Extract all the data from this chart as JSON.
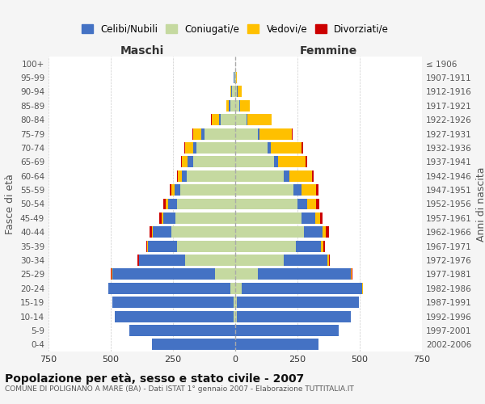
{
  "age_groups": [
    "0-4",
    "5-9",
    "10-14",
    "15-19",
    "20-24",
    "25-29",
    "30-34",
    "35-39",
    "40-44",
    "45-49",
    "50-54",
    "55-59",
    "60-64",
    "65-69",
    "70-74",
    "75-79",
    "80-84",
    "85-89",
    "90-94",
    "95-99",
    "100+"
  ],
  "birth_years": [
    "2002-2006",
    "1997-2001",
    "1992-1996",
    "1987-1991",
    "1982-1986",
    "1977-1981",
    "1972-1976",
    "1967-1971",
    "1962-1966",
    "1957-1961",
    "1952-1956",
    "1947-1951",
    "1942-1946",
    "1937-1941",
    "1932-1936",
    "1927-1931",
    "1922-1926",
    "1917-1921",
    "1912-1916",
    "1907-1911",
    "≤ 1906"
  ],
  "maschi": {
    "celibi": [
      335,
      425,
      480,
      490,
      490,
      415,
      185,
      115,
      75,
      50,
      35,
      25,
      20,
      20,
      15,
      10,
      5,
      5,
      4,
      2,
      0
    ],
    "coniugati": [
      0,
      0,
      5,
      5,
      20,
      80,
      200,
      235,
      255,
      240,
      235,
      220,
      195,
      170,
      155,
      125,
      60,
      20,
      12,
      3,
      0
    ],
    "vedovi": [
      0,
      0,
      0,
      0,
      0,
      2,
      2,
      3,
      4,
      5,
      8,
      10,
      15,
      25,
      30,
      35,
      30,
      10,
      5,
      2,
      0
    ],
    "divorziati": [
      0,
      0,
      0,
      0,
      0,
      3,
      5,
      5,
      10,
      10,
      10,
      8,
      5,
      3,
      3,
      3,
      2,
      0,
      0,
      0,
      0
    ]
  },
  "femmine": {
    "nubili": [
      335,
      415,
      460,
      490,
      485,
      375,
      175,
      100,
      75,
      55,
      40,
      30,
      22,
      18,
      12,
      8,
      5,
      5,
      3,
      1,
      0
    ],
    "coniugate": [
      0,
      0,
      5,
      8,
      25,
      90,
      195,
      245,
      275,
      265,
      250,
      235,
      195,
      155,
      130,
      90,
      45,
      15,
      8,
      2,
      0
    ],
    "vedove": [
      0,
      0,
      0,
      0,
      2,
      3,
      5,
      8,
      15,
      20,
      35,
      60,
      90,
      110,
      125,
      130,
      95,
      40,
      15,
      3,
      0
    ],
    "divorziate": [
      0,
      0,
      0,
      0,
      0,
      2,
      5,
      8,
      12,
      12,
      12,
      10,
      8,
      5,
      5,
      3,
      2,
      0,
      0,
      0,
      0
    ]
  },
  "colors": {
    "celibi_nubili": "#4472c4",
    "coniugati": "#c5d9a0",
    "vedovi": "#ffc000",
    "divorziati": "#cc0000"
  },
  "xlim": 750,
  "title": "Popolazione per età, sesso e stato civile - 2007",
  "subtitle": "COMUNE DI POLIGNANO A MARE (BA) - Dati ISTAT 1° gennaio 2007 - Elaborazione TUTTITALIA.IT",
  "ylabel": "Fasce di età",
  "ylabel_right": "Anni di nascita",
  "legend_labels": [
    "Celibi/Nubili",
    "Coniugati/e",
    "Vedovi/e",
    "Divorziati/e"
  ],
  "maschi_label": "Maschi",
  "femmine_label": "Femmine",
  "bg_color": "#f5f5f5",
  "plot_bg": "#ffffff"
}
